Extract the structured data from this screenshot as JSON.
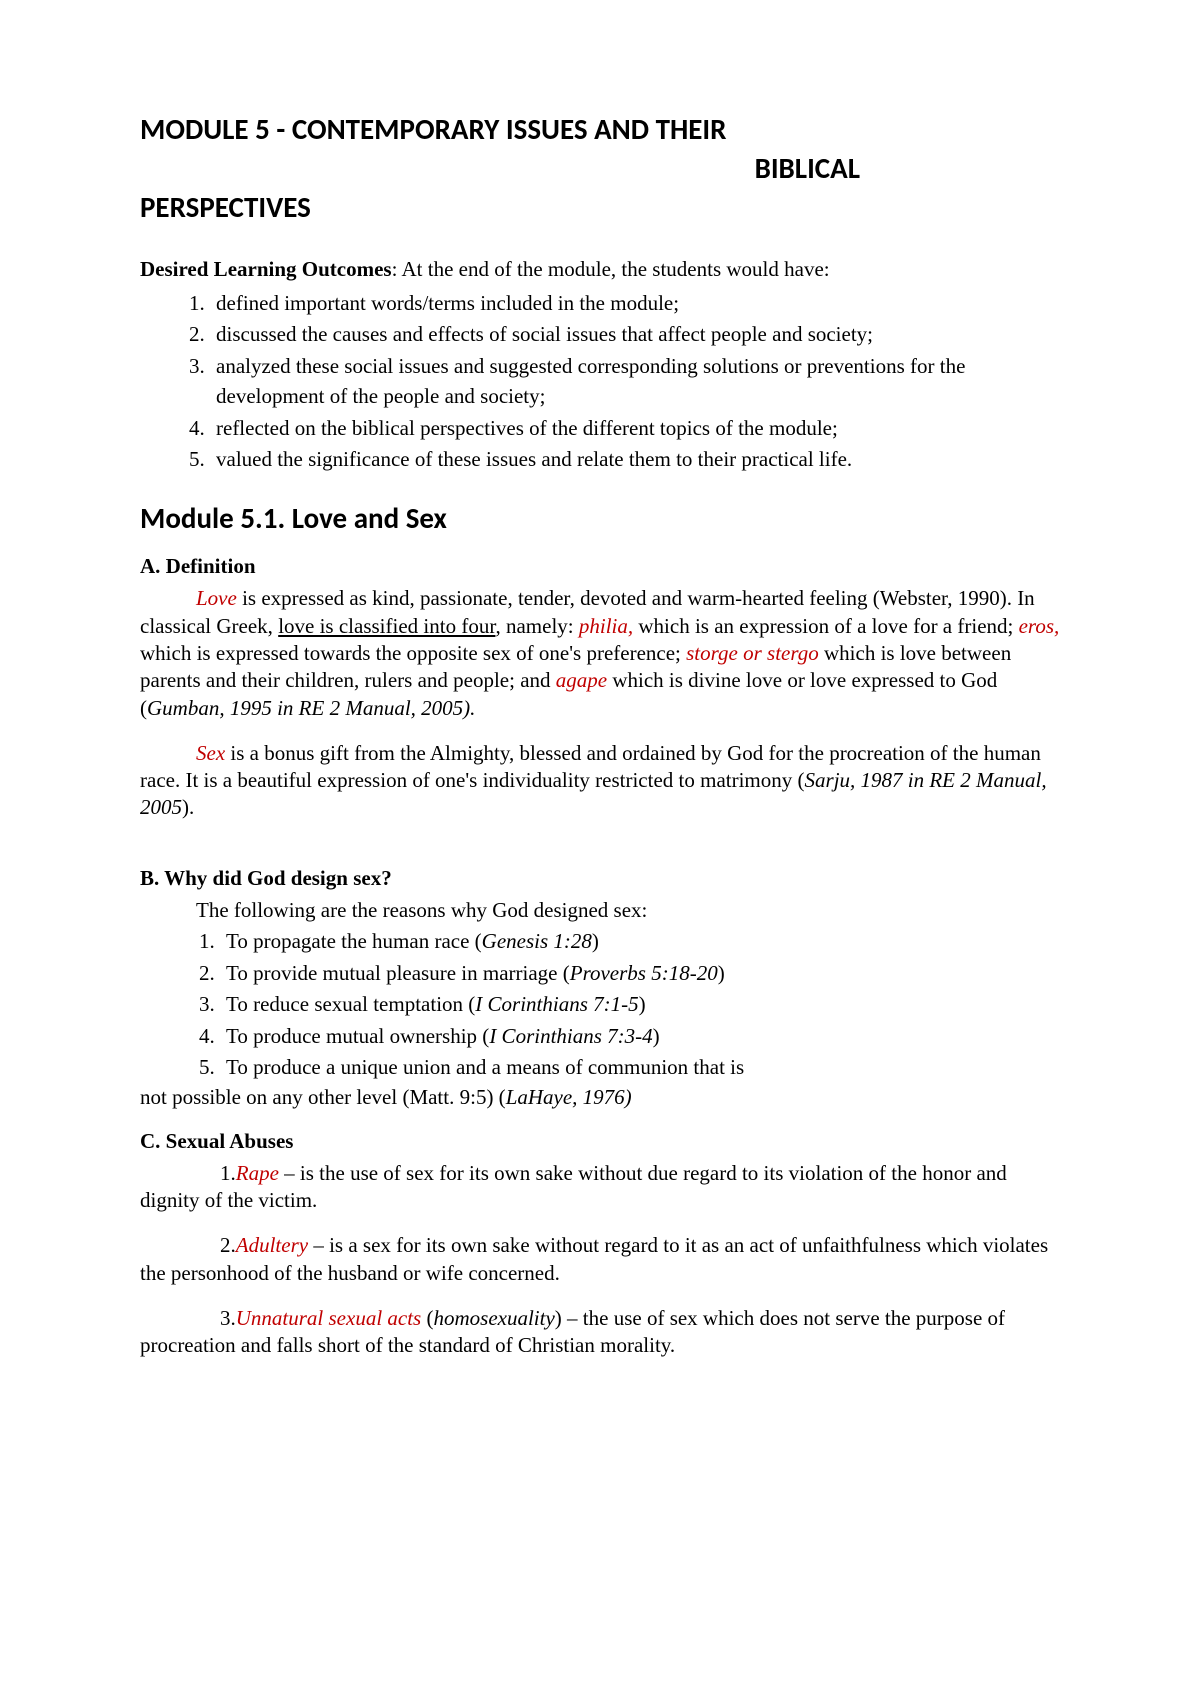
{
  "title": {
    "line1": "MODULE 5 - CONTEMPORARY ISSUES AND THEIR",
    "line2": "BIBLICAL",
    "line3": "PERSPECTIVES"
  },
  "dlo": {
    "label": "Desired Learning Outcomes",
    "intro": ": At the end of the module, the students would have:",
    "items": [
      "defined important words/terms included in the module;",
      "discussed the causes and effects of social issues that affect people and society;",
      "analyzed these social issues and suggested corresponding solutions or preventions for the development of the people and society;",
      "reflected on the biblical perspectives of the different topics of the module;",
      "valued the significance of these issues and relate them to their practical life."
    ]
  },
  "subtitle": "Module 5.1. Love and Sex",
  "sectionA": {
    "heading": "A. Definition",
    "love_term": "Love",
    "love_1": " is expressed as kind, passionate, tender, devoted and warm-hearted feeling (Webster, 1990). In classical Greek, ",
    "love_ul": "love is classified into four",
    "love_2": ", namely: ",
    "philia": "philia,",
    "love_3": " which is an expression of a love for a friend; ",
    "eros": "eros,",
    "love_4": " which is expressed towards the opposite sex of one's preference; ",
    "storge": "storge or stergo",
    "love_5": " which is love between parents and their children, rulers and people; and ",
    "agape": "agape",
    "love_6": " which is divine love or love expressed to God (",
    "love_cite": "Gumban, 1995 in RE 2 Manual, 2005).",
    "sex_term": "Sex",
    "sex_1": " is a bonus gift from the Almighty, blessed and ordained by God for the procreation of the human race.  It is a beautiful expression of one's individuality restricted to matrimony (",
    "sex_cite": "Sarju, 1987 in RE 2 Manual, 2005",
    "sex_2": ")."
  },
  "sectionB": {
    "heading": "B. Why did God design sex?",
    "intro": "The following are the reasons why God designed sex:",
    "items": [
      {
        "text": "To propagate the human race (",
        "ref": "Genesis 1:28",
        "end": ")"
      },
      {
        "text": "To provide mutual pleasure in marriage (",
        "ref": "Proverbs 5:18-20",
        "end": ")"
      },
      {
        "text": "To reduce sexual temptation (",
        "ref": "I Corinthians 7:1-5",
        "end": ")"
      },
      {
        "text": "To produce mutual ownership (",
        "ref": "I Corinthians 7:3-4",
        "end": ")"
      },
      {
        "text": "To produce a unique union and a means of communion that is",
        "ref": "",
        "end": ""
      }
    ],
    "tail_1": "not possible on any other level (Matt. 9:5) (",
    "tail_cite": "LaHaye, 1976)",
    "tail_2": ""
  },
  "sectionC": {
    "heading": "C. Sexual Abuses",
    "items": [
      {
        "num": "1. ",
        "term": "Rape",
        "rest": " – is the use of sex for its own sake without due regard to its violation of the honor and dignity of the victim."
      },
      {
        "num": "2. ",
        "term": "Adultery",
        "rest": " – is a sex for its own sake without regard to it as an act of unfaithfulness which violates the personhood of the husband or wife concerned."
      },
      {
        "num": "3. ",
        "term": "Unnatural sexual acts",
        "paren": " (",
        "paren_it": "homosexuality",
        "paren_end": ")",
        "rest": " – the use of sex which does not serve the purpose of procreation and falls short of the standard of Christian morality."
      }
    ]
  }
}
